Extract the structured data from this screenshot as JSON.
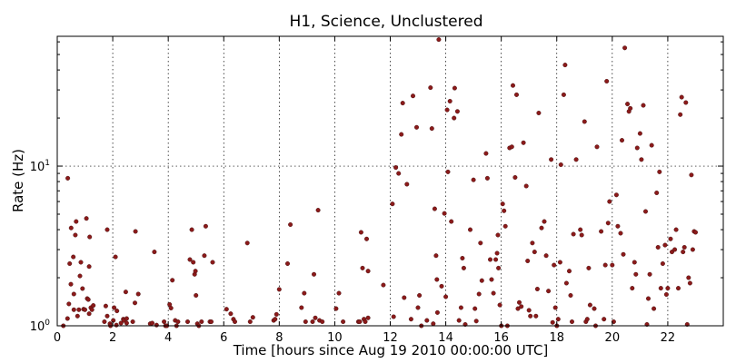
{
  "chart_data": {
    "type": "scatter",
    "title": "H1, Science, Unclustered",
    "xlabel": "Time [hours since Aug 19 2010 00:00:00 UTC]",
    "ylabel": "Rate (Hz)",
    "xlim": [
      0,
      24
    ],
    "ylim": [
      1,
      65
    ],
    "yscale": "log",
    "grid": true,
    "x_ticks": [
      "0",
      "2",
      "4",
      "6",
      "8",
      "10",
      "12",
      "14",
      "16",
      "18",
      "20",
      "22"
    ],
    "y_ticks": [
      {
        "value": 1,
        "base": "10",
        "exp": "0"
      },
      {
        "value": 10,
        "base": "10",
        "exp": "1"
      }
    ],
    "marker_color": "#8b1a1a",
    "series": [
      {
        "points": [
          [
            0.22,
            1.0
          ],
          [
            0.37,
            1.11
          ],
          [
            0.38,
            8.4
          ],
          [
            0.42,
            1.37
          ],
          [
            0.45,
            2.45
          ],
          [
            0.49,
            1.82
          ],
          [
            0.5,
            4.1
          ],
          [
            0.58,
            2.7
          ],
          [
            0.6,
            1.26
          ],
          [
            0.6,
            1.58
          ],
          [
            0.65,
            3.7
          ],
          [
            0.68,
            4.5
          ],
          [
            0.73,
            1.15
          ],
          [
            0.78,
            1.26
          ],
          [
            0.82,
            2.05
          ],
          [
            0.85,
            2.5
          ],
          [
            0.91,
            1.71
          ],
          [
            0.95,
            1.27
          ],
          [
            1.0,
            1.26
          ],
          [
            1.05,
            4.7
          ],
          [
            1.08,
            1.48
          ],
          [
            1.12,
            1.46
          ],
          [
            1.15,
            1.19
          ],
          [
            1.15,
            2.35
          ],
          [
            1.17,
            3.6
          ],
          [
            1.21,
            1.3
          ],
          [
            1.25,
            1.26
          ],
          [
            1.3,
            1.34
          ],
          [
            1.7,
            1.06
          ],
          [
            1.75,
            1.33
          ],
          [
            1.8,
            4.0
          ],
          [
            1.8,
            1.15
          ],
          [
            1.9,
            1.03
          ],
          [
            1.92,
            1.0
          ],
          [
            2.02,
            1.08
          ],
          [
            2.05,
            1.3
          ],
          [
            2.1,
            2.7
          ],
          [
            2.13,
            1.01
          ],
          [
            2.15,
            1.24
          ],
          [
            2.3,
            1.04
          ],
          [
            2.38,
            1.1
          ],
          [
            2.4,
            1.08
          ],
          [
            2.47,
            1.63
          ],
          [
            2.5,
            1.04
          ],
          [
            2.5,
            1.11
          ],
          [
            2.72,
            1.06
          ],
          [
            2.8,
            1.39
          ],
          [
            2.82,
            3.9
          ],
          [
            2.92,
            1.58
          ],
          [
            3.35,
            1.03
          ],
          [
            3.42,
            1.04
          ],
          [
            3.5,
            2.9
          ],
          [
            3.58,
            1.01
          ],
          [
            3.85,
            1.06
          ],
          [
            3.9,
            1.0
          ],
          [
            3.95,
            1.0
          ],
          [
            4.05,
            1.36
          ],
          [
            4.1,
            1.29
          ],
          [
            4.15,
            1.93
          ],
          [
            4.25,
            1.08
          ],
          [
            4.3,
            1.0
          ],
          [
            4.35,
            1.06
          ],
          [
            4.7,
            1.06
          ],
          [
            4.78,
            2.6
          ],
          [
            4.85,
            4.0
          ],
          [
            4.9,
            2.5
          ],
          [
            4.95,
            2.1
          ],
          [
            4.98,
            2.2
          ],
          [
            5.0,
            1.55
          ],
          [
            5.05,
            1.03
          ],
          [
            5.1,
            1.0
          ],
          [
            5.2,
            1.06
          ],
          [
            5.3,
            2.75
          ],
          [
            5.35,
            4.2
          ],
          [
            5.5,
            1.06
          ],
          [
            5.55,
            1.06
          ],
          [
            5.6,
            2.5
          ],
          [
            6.1,
            1.27
          ],
          [
            6.25,
            1.19
          ],
          [
            6.35,
            1.1
          ],
          [
            6.4,
            1.06
          ],
          [
            6.85,
            3.3
          ],
          [
            6.95,
            1.06
          ],
          [
            7.05,
            1.13
          ],
          [
            7.8,
            1.08
          ],
          [
            7.85,
            1.1
          ],
          [
            7.9,
            1.18
          ],
          [
            8.0,
            1.69
          ],
          [
            8.3,
            2.45
          ],
          [
            8.4,
            4.3
          ],
          [
            8.8,
            1.3
          ],
          [
            8.9,
            1.6
          ],
          [
            8.95,
            1.06
          ],
          [
            9.2,
            1.06
          ],
          [
            9.25,
            2.1
          ],
          [
            9.3,
            1.12
          ],
          [
            9.4,
            5.3
          ],
          [
            9.45,
            1.08
          ],
          [
            9.55,
            1.06
          ],
          [
            10.05,
            1.28
          ],
          [
            10.15,
            1.6
          ],
          [
            10.3,
            1.06
          ],
          [
            10.85,
            1.06
          ],
          [
            10.9,
            1.06
          ],
          [
            10.95,
            3.85
          ],
          [
            11.0,
            2.3
          ],
          [
            11.05,
            1.1
          ],
          [
            11.1,
            1.06
          ],
          [
            11.15,
            3.5
          ],
          [
            11.2,
            2.2
          ],
          [
            11.2,
            1.12
          ],
          [
            11.75,
            1.8
          ],
          [
            12.08,
            5.8
          ],
          [
            12.12,
            1.14
          ],
          [
            12.2,
            9.8
          ],
          [
            12.3,
            9.0
          ],
          [
            12.4,
            15.8
          ],
          [
            12.45,
            24.8
          ],
          [
            12.5,
            1.5
          ],
          [
            12.6,
            7.7
          ],
          [
            12.75,
            1.1
          ],
          [
            12.82,
            27.5
          ],
          [
            12.95,
            17.5
          ],
          [
            13.0,
            1.3
          ],
          [
            13.05,
            1.55
          ],
          [
            13.12,
            1.0
          ],
          [
            13.32,
            1.08
          ],
          [
            13.45,
            31.0
          ],
          [
            13.5,
            17.2
          ],
          [
            13.55,
            1.03
          ],
          [
            13.6,
            5.4
          ],
          [
            13.65,
            2.75
          ],
          [
            13.68,
            1.95
          ],
          [
            13.7,
            1.21
          ],
          [
            13.75,
            62.0
          ],
          [
            13.85,
            1.77
          ],
          [
            13.95,
            5.05
          ],
          [
            14.0,
            1.52
          ],
          [
            14.05,
            22.5
          ],
          [
            14.08,
            9.2
          ],
          [
            14.15,
            25.5
          ],
          [
            14.2,
            4.5
          ],
          [
            14.3,
            20.0
          ],
          [
            14.32,
            30.8
          ],
          [
            14.42,
            22.0
          ],
          [
            14.48,
            1.08
          ],
          [
            14.55,
            1.3
          ],
          [
            14.6,
            2.65
          ],
          [
            14.65,
            2.3
          ],
          [
            14.7,
            1.02
          ],
          [
            14.88,
            4.0
          ],
          [
            15.0,
            8.2
          ],
          [
            15.05,
            1.28
          ],
          [
            15.1,
            1.07
          ],
          [
            15.2,
            1.58
          ],
          [
            15.25,
            3.3
          ],
          [
            15.3,
            1.92
          ],
          [
            15.45,
            12.0
          ],
          [
            15.5,
            8.4
          ],
          [
            15.6,
            2.6
          ],
          [
            15.65,
            1.95
          ],
          [
            15.72,
            1.6
          ],
          [
            15.8,
            2.6
          ],
          [
            15.85,
            2.85
          ],
          [
            15.88,
            3.7
          ],
          [
            15.9,
            2.3
          ],
          [
            15.95,
            1.35
          ],
          [
            16.0,
            1.0
          ],
          [
            16.05,
            5.8
          ],
          [
            16.1,
            5.25
          ],
          [
            16.15,
            4.2
          ],
          [
            16.22,
            1.0
          ],
          [
            16.3,
            13.0
          ],
          [
            16.38,
            13.2
          ],
          [
            16.42,
            32.0
          ],
          [
            16.5,
            8.5
          ],
          [
            16.55,
            28.0
          ],
          [
            16.6,
            1.28
          ],
          [
            16.65,
            1.4
          ],
          [
            16.72,
            1.32
          ],
          [
            16.8,
            14.0
          ],
          [
            16.9,
            7.5
          ],
          [
            16.95,
            2.55
          ],
          [
            17.0,
            1.25
          ],
          [
            17.05,
            1.15
          ],
          [
            17.12,
            3.3
          ],
          [
            17.2,
            2.9
          ],
          [
            17.25,
            1.15
          ],
          [
            17.3,
            1.7
          ],
          [
            17.35,
            21.5
          ],
          [
            17.45,
            4.1
          ],
          [
            17.55,
            4.5
          ],
          [
            17.62,
            2.75
          ],
          [
            17.7,
            1.65
          ],
          [
            17.8,
            11.0
          ],
          [
            17.85,
            1.05
          ],
          [
            17.9,
            2.4
          ],
          [
            17.95,
            1.3
          ],
          [
            18.0,
            1.0
          ],
          [
            18.05,
            1.1
          ],
          [
            18.12,
            2.5
          ],
          [
            18.15,
            10.2
          ],
          [
            18.25,
            28.0
          ],
          [
            18.3,
            43.0
          ],
          [
            18.35,
            1.85
          ],
          [
            18.45,
            2.2
          ],
          [
            18.5,
            1.55
          ],
          [
            18.55,
            1.06
          ],
          [
            18.6,
            3.75
          ],
          [
            18.7,
            11.0
          ],
          [
            18.85,
            4.0
          ],
          [
            18.9,
            3.7
          ],
          [
            19.0,
            19.0
          ],
          [
            19.05,
            1.06
          ],
          [
            19.1,
            1.1
          ],
          [
            19.15,
            2.3
          ],
          [
            19.2,
            1.35
          ],
          [
            19.35,
            1.28
          ],
          [
            19.4,
            1.0
          ],
          [
            19.45,
            13.2
          ],
          [
            19.6,
            3.9
          ],
          [
            19.7,
            1.1
          ],
          [
            19.75,
            2.4
          ],
          [
            19.8,
            34.0
          ],
          [
            19.85,
            4.4
          ],
          [
            19.9,
            6.0
          ],
          [
            20.0,
            2.4
          ],
          [
            20.05,
            1.06
          ],
          [
            20.15,
            6.6
          ],
          [
            20.2,
            4.2
          ],
          [
            20.3,
            3.8
          ],
          [
            20.35,
            14.5
          ],
          [
            20.4,
            2.8
          ],
          [
            20.45,
            55.0
          ],
          [
            20.55,
            24.5
          ],
          [
            20.6,
            22.0
          ],
          [
            20.65,
            23.0
          ],
          [
            20.72,
            1.72
          ],
          [
            20.8,
            2.5
          ],
          [
            20.85,
            2.1
          ],
          [
            20.9,
            13.0
          ],
          [
            21.0,
            16.0
          ],
          [
            21.05,
            11.0
          ],
          [
            21.12,
            24.0
          ],
          [
            21.2,
            5.2
          ],
          [
            21.25,
            1.02
          ],
          [
            21.3,
            1.48
          ],
          [
            21.35,
            2.1
          ],
          [
            21.42,
            13.5
          ],
          [
            21.5,
            1.28
          ],
          [
            21.6,
            6.8
          ],
          [
            21.65,
            3.1
          ],
          [
            21.7,
            9.2
          ],
          [
            21.75,
            1.72
          ],
          [
            21.82,
            2.45
          ],
          [
            21.9,
            3.2
          ],
          [
            21.95,
            1.57
          ],
          [
            22.0,
            1.72
          ],
          [
            22.1,
            3.5
          ],
          [
            22.15,
            2.9
          ],
          [
            22.25,
            3.0
          ],
          [
            22.3,
            4.0
          ],
          [
            22.38,
            1.72
          ],
          [
            22.45,
            21.0
          ],
          [
            22.5,
            27.0
          ],
          [
            22.55,
            2.9
          ],
          [
            22.6,
            3.1
          ],
          [
            22.65,
            25.0
          ],
          [
            22.7,
            1.02
          ],
          [
            22.75,
            2.0
          ],
          [
            22.8,
            1.85
          ],
          [
            22.85,
            8.8
          ],
          [
            22.9,
            3.0
          ],
          [
            22.95,
            3.9
          ],
          [
            23.0,
            3.85
          ]
        ]
      }
    ]
  }
}
